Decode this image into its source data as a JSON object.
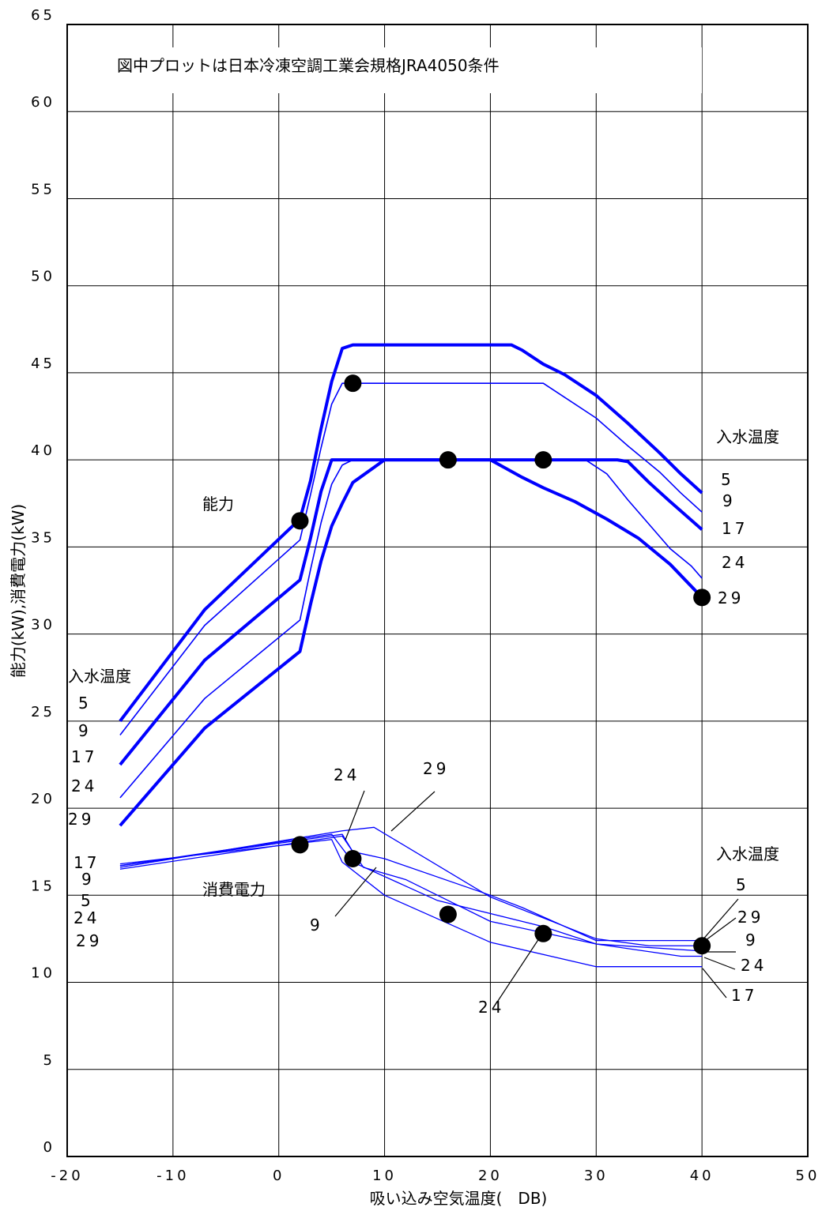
{
  "chart_data": {
    "type": "line",
    "title": "図中プロットは日本冷凍空調工業会規格JRA4050条件",
    "xlabel": "吸い込み空気温度(　DB)",
    "ylabel": "能力(kW),消費電力(kW)",
    "xlim": [
      -20,
      50
    ],
    "ylim": [
      0,
      65
    ],
    "x_ticks": [
      "-20",
      "-10",
      "0",
      "10",
      "20",
      "30",
      "40",
      "50"
    ],
    "y_ticks": [
      "0",
      "5",
      "10",
      "15",
      "20",
      "25",
      "30",
      "35",
      "40",
      "45",
      "50",
      "55",
      "60",
      "65"
    ],
    "grid": true,
    "colors": {
      "series": "#0000ff",
      "marker": "#000000"
    },
    "annotations": {
      "capacity": "能力",
      "power": "消費電力",
      "water_temp_left": "入水温度",
      "water_temp_right_cap": "入水温度",
      "water_temp_right_pow": "入水温度",
      "left_cap_labels": [
        "5",
        "9",
        "17",
        "24",
        "29"
      ],
      "right_cap_labels": [
        "5",
        "9",
        "17",
        "24",
        "29"
      ],
      "left_pow_labels": [
        "17",
        "9",
        "5",
        "24",
        "29"
      ],
      "pow_callout_24_top": "24",
      "pow_callout_29_top": "29",
      "pow_callout_9": "9",
      "pow_callout_24_bottom": "24",
      "right_pow_labels": [
        "5",
        "29",
        "9",
        "24",
        "17"
      ]
    },
    "capacity_series": [
      {
        "name": "5",
        "x": [
          -15,
          -7,
          2,
          3,
          4,
          5,
          6,
          7,
          22,
          23,
          25,
          27,
          30,
          33,
          36,
          38,
          40
        ],
        "y": [
          25,
          31.4,
          36.6,
          38.8,
          41.8,
          44.5,
          46.4,
          46.6,
          46.6,
          46.3,
          45.5,
          44.9,
          43.7,
          42.1,
          40.4,
          39.2,
          38.1
        ]
      },
      {
        "name": "9",
        "x": [
          -15,
          -7,
          2,
          3,
          4,
          5,
          6,
          7,
          25,
          27,
          30,
          33,
          36,
          38,
          40
        ],
        "y": [
          24.2,
          30.5,
          35.4,
          38,
          40.7,
          43.2,
          44.4,
          44.4,
          44.4,
          43.6,
          42.4,
          40.8,
          39.3,
          38.1,
          37
        ]
      },
      {
        "name": "17",
        "x": [
          -15,
          -7,
          2,
          3,
          4,
          5,
          32,
          33,
          35,
          37,
          40
        ],
        "y": [
          22.5,
          28.5,
          33.1,
          35.5,
          38.2,
          40,
          40,
          39.9,
          38.7,
          37.6,
          36
        ]
      },
      {
        "name": "24",
        "x": [
          -15,
          -7,
          2,
          3,
          4,
          5,
          6,
          7,
          29,
          31,
          33,
          35,
          37,
          39,
          40
        ],
        "y": [
          20.6,
          26.3,
          30.8,
          33.7,
          36.4,
          38.6,
          39.7,
          40,
          40,
          39.2,
          37.7,
          36.3,
          34.9,
          33.9,
          33.2
        ]
      },
      {
        "name": "29",
        "x": [
          -15,
          -7,
          2,
          3,
          4,
          5,
          6,
          7,
          10,
          20,
          23,
          25,
          28,
          31,
          34,
          37,
          40
        ],
        "y": [
          19,
          24.6,
          29,
          31.7,
          34.2,
          36.2,
          37.5,
          38.7,
          40,
          40,
          39,
          38.4,
          37.6,
          36.6,
          35.5,
          34,
          32.1
        ]
      }
    ],
    "power_series": [
      {
        "name": "5",
        "x": [
          -15,
          6,
          9,
          20,
          30,
          35,
          40
        ],
        "y": [
          16.6,
          18.7,
          18.9,
          14.9,
          12.5,
          12.1,
          12.1
        ]
      },
      {
        "name": "9",
        "x": [
          -15,
          6,
          8,
          12,
          20,
          30,
          40
        ],
        "y": [
          16.5,
          18.4,
          16.6,
          15.9,
          13.5,
          12.2,
          11.8
        ]
      },
      {
        "name": "17",
        "x": [
          -15,
          5,
          6,
          10,
          20,
          30,
          40
        ],
        "y": [
          16.8,
          18.2,
          16.9,
          15,
          12.3,
          10.9,
          10.9
        ]
      },
      {
        "name": "24",
        "x": [
          -15,
          5,
          7,
          15,
          25,
          30,
          38,
          40
        ],
        "y": [
          16.7,
          18.5,
          16.9,
          14.7,
          13.2,
          12.2,
          11.5,
          11.5
        ]
      },
      {
        "name": "29",
        "x": [
          -15,
          6,
          7,
          10,
          20,
          23,
          30,
          40
        ],
        "y": [
          16.7,
          18.5,
          17.5,
          17.1,
          15,
          14.3,
          12.4,
          12.4
        ]
      }
    ],
    "markers": [
      {
        "x": 2,
        "y": 36.5
      },
      {
        "x": 7,
        "y": 44.4
      },
      {
        "x": 16,
        "y": 40
      },
      {
        "x": 25,
        "y": 40
      },
      {
        "x": 40,
        "y": 32.1
      },
      {
        "x": 2,
        "y": 17.9
      },
      {
        "x": 7,
        "y": 17.1
      },
      {
        "x": 16,
        "y": 13.9
      },
      {
        "x": 25,
        "y": 12.8
      },
      {
        "x": 40,
        "y": 12.1
      }
    ]
  }
}
